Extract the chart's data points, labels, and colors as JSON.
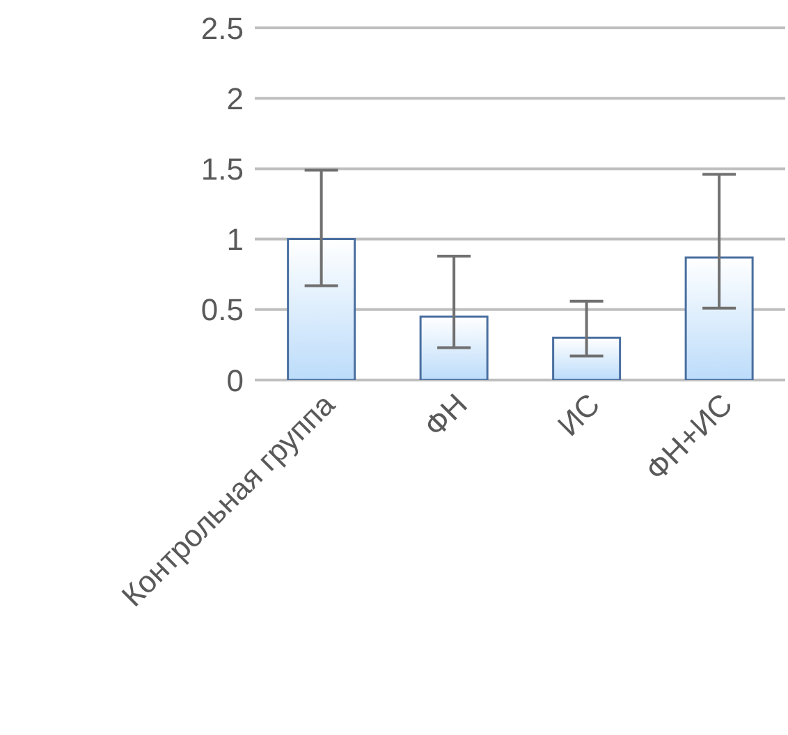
{
  "chart_data": {
    "type": "bar",
    "categories": [
      "Контрольная группа",
      "ФН",
      "ИС",
      "ФН+ИС"
    ],
    "values": [
      1.0,
      0.45,
      0.3,
      0.87
    ],
    "errors": [
      [
        0.67,
        1.49
      ],
      [
        0.23,
        0.88
      ],
      [
        0.17,
        0.56
      ],
      [
        0.51,
        1.46
      ]
    ],
    "color": "#4a6fa0",
    "ylim": [
      0,
      2.5
    ],
    "yticks": [
      0,
      0.5,
      1,
      1.5,
      2,
      2.5
    ],
    "grid": "y"
  }
}
